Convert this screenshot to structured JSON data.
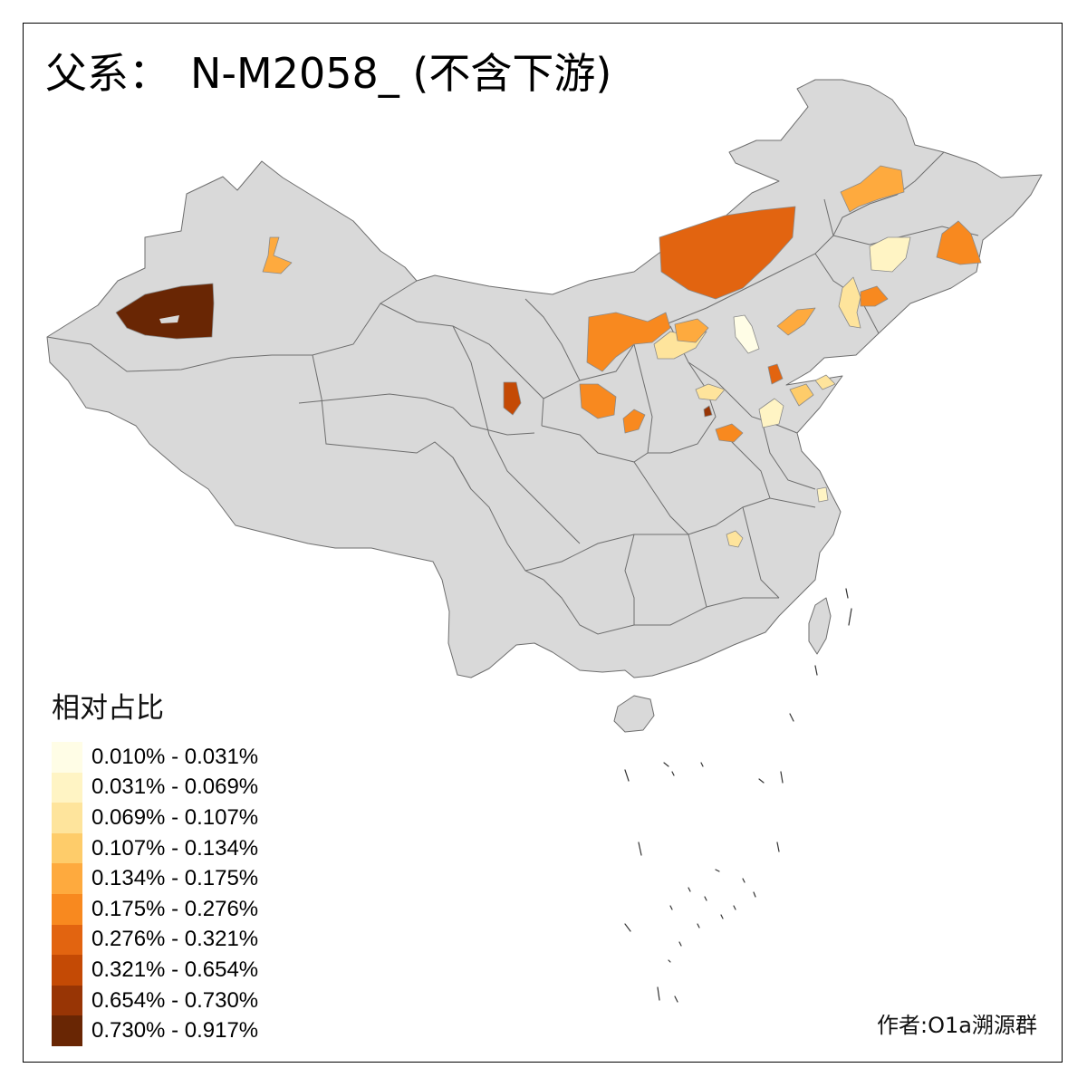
{
  "title": {
    "prefix": "父系：",
    "main": "N-M2058_ (不含下游)"
  },
  "legend": {
    "title": "相对占比",
    "items": [
      {
        "label": "0.010% - 0.031%",
        "color": "#fffde6"
      },
      {
        "label": "0.031% - 0.069%",
        "color": "#fff4c4"
      },
      {
        "label": "0.069% - 0.107%",
        "color": "#fee49c"
      },
      {
        "label": "0.107% - 0.134%",
        "color": "#fecc6a"
      },
      {
        "label": "0.134% - 0.175%",
        "color": "#feaa3e"
      },
      {
        "label": "0.175% - 0.276%",
        "color": "#f8891f"
      },
      {
        "label": "0.276% - 0.321%",
        "color": "#e26410"
      },
      {
        "label": "0.321% - 0.654%",
        "color": "#c44a05"
      },
      {
        "label": "0.654% - 0.730%",
        "color": "#983505"
      },
      {
        "label": "0.730% - 0.917%",
        "color": "#692604"
      }
    ]
  },
  "author": "作者:O1a溯源群",
  "colors": {
    "base": "#d9d9d9",
    "border": "#6e6e6e",
    "frame": "#000000"
  }
}
